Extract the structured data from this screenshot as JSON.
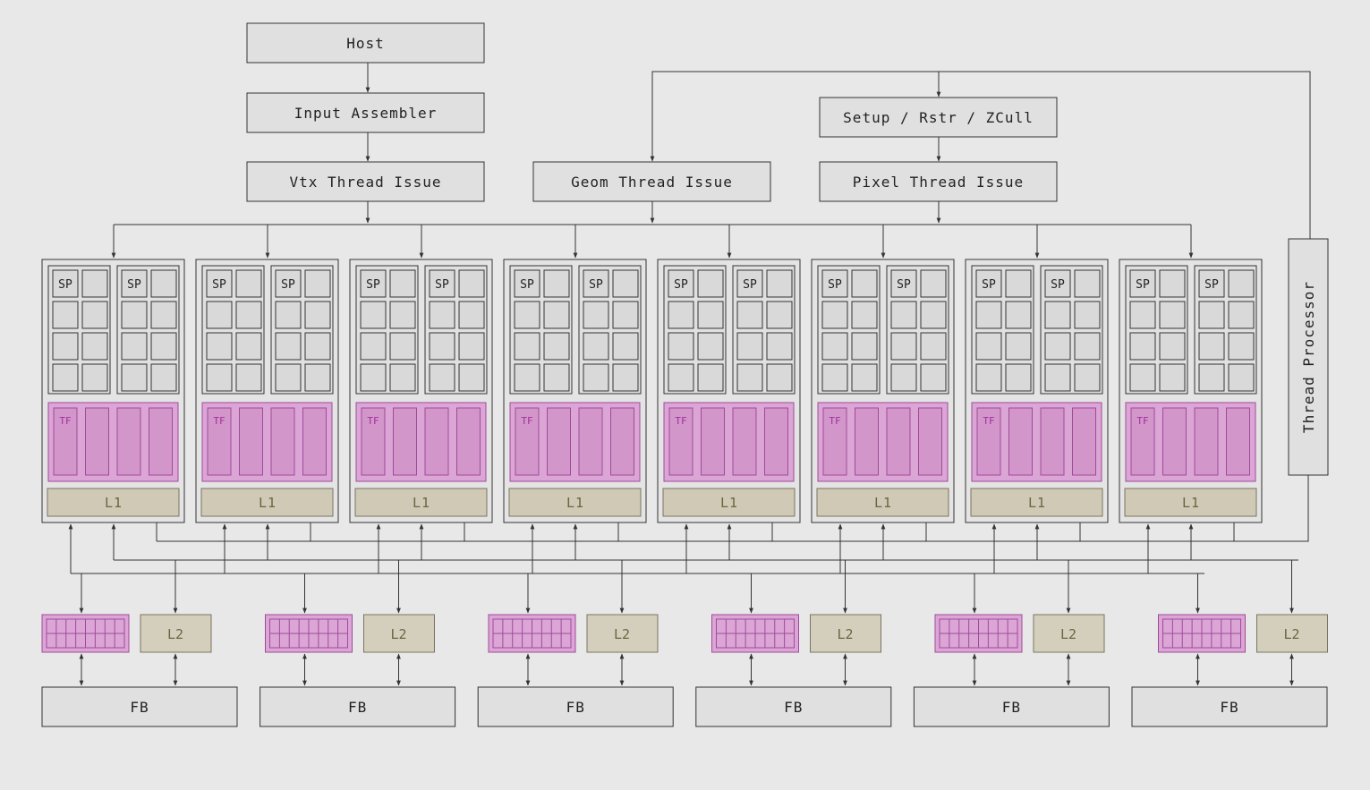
{
  "host": "Host",
  "input_assembler": "Input Assembler",
  "vtx_thread_issue": "Vtx Thread Issue",
  "geom_thread_issue": "Geom Thread Issue",
  "setup_rstr_zcull": "Setup / Rstr / ZCull",
  "pixel_thread_issue": "Pixel Thread Issue",
  "thread_processor": "Thread Processor",
  "sp_label": "SP",
  "tf_label": "TF",
  "l1_label": "L1",
  "l2_label": "L2",
  "fb_label": "FB",
  "cluster_count": 8,
  "partition_count": 6,
  "colors": {
    "background": "#e8e8e8",
    "box": "#e0e0e0",
    "texture_unit": "#dba6d5",
    "cache": "#cfc9b6"
  }
}
